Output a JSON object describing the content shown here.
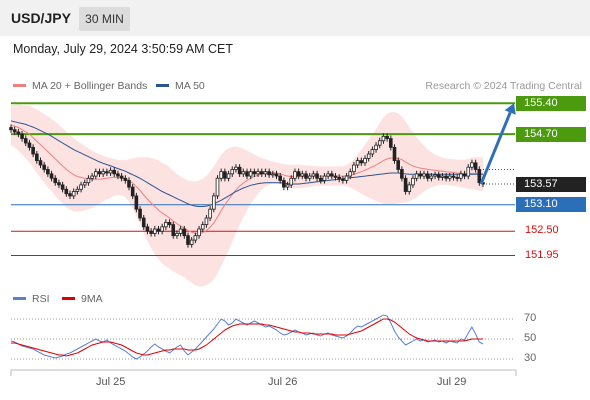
{
  "header": {
    "symbol": "USD/JPY",
    "timeframe": "30 MIN"
  },
  "datetime": "Monday, July 29, 2024 3:50:59 AM CET",
  "credit": "Research © 2024 Trading Central",
  "legend": {
    "ma20": {
      "label": "MA 20 + Bollinger Bands",
      "color": "#f08080"
    },
    "ma50": {
      "label": "MA 50",
      "color": "#2a5590"
    }
  },
  "rsi_legend": {
    "rsi": {
      "label": "RSI",
      "color": "#5b7fd8"
    },
    "ma9": {
      "label": "9MA",
      "color": "#e00000"
    }
  },
  "chart_data": [
    {
      "type": "candlestick",
      "x_labels": [
        "Jul 25",
        "Jul 26",
        "Jul 29"
      ],
      "levels": [
        {
          "label": "155.40",
          "value": 155.4,
          "kind": "target",
          "color": "#4c9a0e"
        },
        {
          "label": "154.70",
          "value": 154.7,
          "kind": "resistance",
          "color": "#4c9a0e"
        },
        {
          "label": "153.57",
          "value": 153.57,
          "kind": "current",
          "color": "#222222"
        },
        {
          "label": "153.10",
          "value": 153.1,
          "kind": "pivot",
          "color": "#2a6fb8"
        },
        {
          "label": "152.50",
          "value": 152.5,
          "kind": "support",
          "color": "#d81010"
        },
        {
          "label": "151.95",
          "value": 151.95,
          "kind": "support",
          "color": "#d81010"
        }
      ],
      "close": [
        154.8,
        154.75,
        154.7,
        154.6,
        154.5,
        154.4,
        154.25,
        154.1,
        154.0,
        153.9,
        153.8,
        153.7,
        153.6,
        153.55,
        153.45,
        153.35,
        153.3,
        153.4,
        153.45,
        153.55,
        153.6,
        153.7,
        153.75,
        153.85,
        153.8,
        153.85,
        153.82,
        153.88,
        153.8,
        153.75,
        153.7,
        153.65,
        153.5,
        153.3,
        153.0,
        152.8,
        152.6,
        152.5,
        152.45,
        152.55,
        152.5,
        152.6,
        152.7,
        152.65,
        152.4,
        152.45,
        152.55,
        152.4,
        152.2,
        152.3,
        152.4,
        152.55,
        152.65,
        152.8,
        153.0,
        153.3,
        153.7,
        153.85,
        153.7,
        153.8,
        153.9,
        153.95,
        153.8,
        153.85,
        153.75,
        153.85,
        153.8,
        153.85,
        153.8,
        153.85,
        153.78,
        153.8,
        153.75,
        153.65,
        153.5,
        153.55,
        153.7,
        153.85,
        153.75,
        153.8,
        153.7,
        153.75,
        153.8,
        153.7,
        153.65,
        153.75,
        153.8,
        153.75,
        153.72,
        153.68,
        153.65,
        153.75,
        153.85,
        154.0,
        154.1,
        154.05,
        154.15,
        154.25,
        154.35,
        154.45,
        154.55,
        154.65,
        154.6,
        154.4,
        154.1,
        153.9,
        153.7,
        153.4,
        153.55,
        153.7,
        153.8,
        153.75,
        153.8,
        153.7,
        153.75,
        153.78,
        153.72,
        153.75,
        153.7,
        153.75,
        153.72,
        153.7,
        153.8,
        153.75,
        153.95,
        154.05,
        153.9,
        153.6,
        153.57
      ],
      "ma20": [
        154.9,
        154.88,
        154.85,
        154.8,
        154.75,
        154.7,
        154.62,
        154.54,
        154.46,
        154.38,
        154.3,
        154.22,
        154.14,
        154.06,
        153.98,
        153.9,
        153.84,
        153.78,
        153.74,
        153.72,
        153.7,
        153.69,
        153.68,
        153.68,
        153.68,
        153.69,
        153.7,
        153.71,
        153.72,
        153.72,
        153.71,
        153.69,
        153.65,
        153.59,
        153.51,
        153.42,
        153.32,
        153.23,
        153.14,
        153.06,
        152.98,
        152.91,
        152.86,
        152.8,
        152.73,
        152.67,
        152.62,
        152.57,
        152.52,
        152.48,
        152.45,
        152.45,
        152.47,
        152.52,
        152.59,
        152.69,
        152.82,
        152.97,
        153.1,
        153.22,
        153.33,
        153.44,
        153.52,
        153.59,
        153.65,
        153.7,
        153.74,
        153.77,
        153.8,
        153.82,
        153.83,
        153.83,
        153.82,
        153.8,
        153.77,
        153.75,
        153.74,
        153.74,
        153.74,
        153.74,
        153.74,
        153.74,
        153.75,
        153.75,
        153.75,
        153.75,
        153.75,
        153.75,
        153.75,
        153.75,
        153.75,
        153.76,
        153.77,
        153.79,
        153.82,
        153.85,
        153.88,
        153.92,
        153.96,
        154.0,
        154.05,
        154.1,
        154.14,
        154.16,
        154.16,
        154.15,
        154.12,
        154.07,
        154.02,
        153.98,
        153.95,
        153.93,
        153.92,
        153.9,
        153.89,
        153.88,
        153.87,
        153.86,
        153.85,
        153.84,
        153.83,
        153.82,
        153.81,
        153.8,
        153.8,
        153.81,
        153.81,
        153.8,
        153.79
      ],
      "ma50": [
        155.0,
        154.98,
        154.96,
        154.94,
        154.92,
        154.89,
        154.86,
        154.82,
        154.78,
        154.74,
        154.7,
        154.65,
        154.6,
        154.55,
        154.5,
        154.45,
        154.4,
        154.35,
        154.31,
        154.27,
        154.23,
        154.19,
        154.15,
        154.11,
        154.07,
        154.04,
        154.01,
        153.98,
        153.95,
        153.92,
        153.89,
        153.86,
        153.82,
        153.78,
        153.74,
        153.7,
        153.65,
        153.6,
        153.55,
        153.5,
        153.45,
        153.4,
        153.36,
        153.32,
        153.28,
        153.24,
        153.2,
        153.16,
        153.12,
        153.09,
        153.07,
        153.06,
        153.06,
        153.07,
        153.09,
        153.12,
        153.16,
        153.2,
        153.25,
        153.3,
        153.35,
        153.4,
        153.44,
        153.48,
        153.51,
        153.54,
        153.56,
        153.58,
        153.59,
        153.6,
        153.6,
        153.6,
        153.6,
        153.6,
        153.59,
        153.58,
        153.57,
        153.57,
        153.57,
        153.58,
        153.59,
        153.6,
        153.61,
        153.62,
        153.63,
        153.64,
        153.65,
        153.66,
        153.67,
        153.68,
        153.69,
        153.7,
        153.71,
        153.72,
        153.73,
        153.74,
        153.75,
        153.76,
        153.77,
        153.78,
        153.79,
        153.8,
        153.81,
        153.82,
        153.82,
        153.82,
        153.81,
        153.8,
        153.79,
        153.79,
        153.79,
        153.79,
        153.79,
        153.79,
        153.79,
        153.79,
        153.79,
        153.79,
        153.79,
        153.79,
        153.79,
        153.79,
        153.79,
        153.79,
        153.79,
        153.79,
        153.79,
        153.79,
        153.79
      ],
      "bb_width": [
        0.45,
        0.48,
        0.52,
        0.56,
        0.6,
        0.64,
        0.68,
        0.72,
        0.75,
        0.78,
        0.8,
        0.82,
        0.84,
        0.85,
        0.86,
        0.86,
        0.85,
        0.83,
        0.8,
        0.77,
        0.73,
        0.69,
        0.65,
        0.6,
        0.56,
        0.52,
        0.48,
        0.45,
        0.42,
        0.4,
        0.4,
        0.42,
        0.48,
        0.56,
        0.66,
        0.76,
        0.86,
        0.95,
        1.02,
        1.08,
        1.12,
        1.14,
        1.15,
        1.15,
        1.14,
        1.13,
        1.12,
        1.12,
        1.13,
        1.15,
        1.18,
        1.2,
        1.22,
        1.24,
        1.26,
        1.28,
        1.28,
        1.26,
        1.22,
        1.16,
        1.08,
        0.98,
        0.88,
        0.78,
        0.68,
        0.58,
        0.5,
        0.42,
        0.36,
        0.31,
        0.27,
        0.25,
        0.24,
        0.24,
        0.25,
        0.26,
        0.27,
        0.27,
        0.27,
        0.26,
        0.25,
        0.24,
        0.23,
        0.22,
        0.22,
        0.22,
        0.22,
        0.22,
        0.22,
        0.22,
        0.22,
        0.24,
        0.28,
        0.34,
        0.42,
        0.5,
        0.58,
        0.66,
        0.74,
        0.82,
        0.9,
        0.98,
        1.02,
        1.04,
        1.04,
        1.02,
        0.98,
        0.92,
        0.84,
        0.76,
        0.68,
        0.6,
        0.52,
        0.45,
        0.4,
        0.36,
        0.33,
        0.31,
        0.3,
        0.3,
        0.3,
        0.3,
        0.31,
        0.32,
        0.34,
        0.36,
        0.37,
        0.38,
        0.38
      ],
      "ylim": [
        151.35,
        155.7
      ],
      "arrow": {
        "from": 153.57,
        "to": 155.4
      }
    },
    {
      "type": "line",
      "name": "RSI",
      "yticks": [
        "70",
        "50",
        "30"
      ],
      "ylim": [
        20,
        80
      ],
      "series": [
        {
          "key": "rsi",
          "values": [
            48,
            47,
            45,
            43,
            42,
            41,
            40,
            38,
            36,
            34,
            33,
            32,
            31,
            32,
            33,
            35,
            36,
            38,
            40,
            42,
            44,
            46,
            48,
            50,
            48,
            47,
            49,
            46,
            44,
            42,
            40,
            38,
            35,
            32,
            30,
            32,
            35,
            38,
            42,
            45,
            42,
            40,
            38,
            36,
            39,
            42,
            44,
            38,
            34,
            37,
            40,
            44,
            48,
            52,
            56,
            60,
            65,
            70,
            68,
            64,
            66,
            70,
            68,
            66,
            64,
            66,
            68,
            66,
            64,
            62,
            63,
            61,
            59,
            56,
            54,
            55,
            57,
            59,
            57,
            56,
            54,
            55,
            56,
            54,
            53,
            55,
            56,
            54,
            53,
            52,
            51,
            53,
            56,
            60,
            63,
            62,
            64,
            66,
            68,
            70,
            72,
            74,
            73,
            66,
            58,
            52,
            48,
            44,
            46,
            48,
            50,
            48,
            49,
            47,
            48,
            49,
            47,
            48,
            46,
            48,
            47,
            46,
            50,
            49,
            56,
            62,
            55,
            47,
            45
          ]
        },
        {
          "key": "ma9",
          "values": [
            46,
            46,
            45,
            44,
            43,
            42,
            41,
            40,
            39,
            38,
            37,
            36,
            35,
            34,
            34,
            33,
            34,
            35,
            36,
            38,
            40,
            42,
            44,
            45,
            46,
            47,
            47,
            47,
            46,
            45,
            44,
            42,
            40,
            38,
            36,
            35,
            34,
            34,
            35,
            36,
            37,
            38,
            39,
            39,
            40,
            40,
            40,
            40,
            39,
            39,
            39,
            40,
            42,
            44,
            47,
            50,
            53,
            56,
            59,
            61,
            63,
            64,
            65,
            65,
            65,
            65,
            65,
            65,
            65,
            64,
            64,
            63,
            62,
            61,
            60,
            59,
            58,
            57,
            57,
            56,
            56,
            56,
            55,
            55,
            55,
            55,
            55,
            55,
            54,
            54,
            54,
            54,
            55,
            56,
            57,
            58,
            60,
            62,
            64,
            66,
            68,
            70,
            70,
            69,
            67,
            64,
            61,
            58,
            55,
            53,
            51,
            50,
            49,
            48,
            48,
            48,
            48,
            48,
            48,
            48,
            48,
            48,
            48,
            48,
            49,
            50,
            50,
            50,
            50
          ]
        }
      ]
    }
  ]
}
